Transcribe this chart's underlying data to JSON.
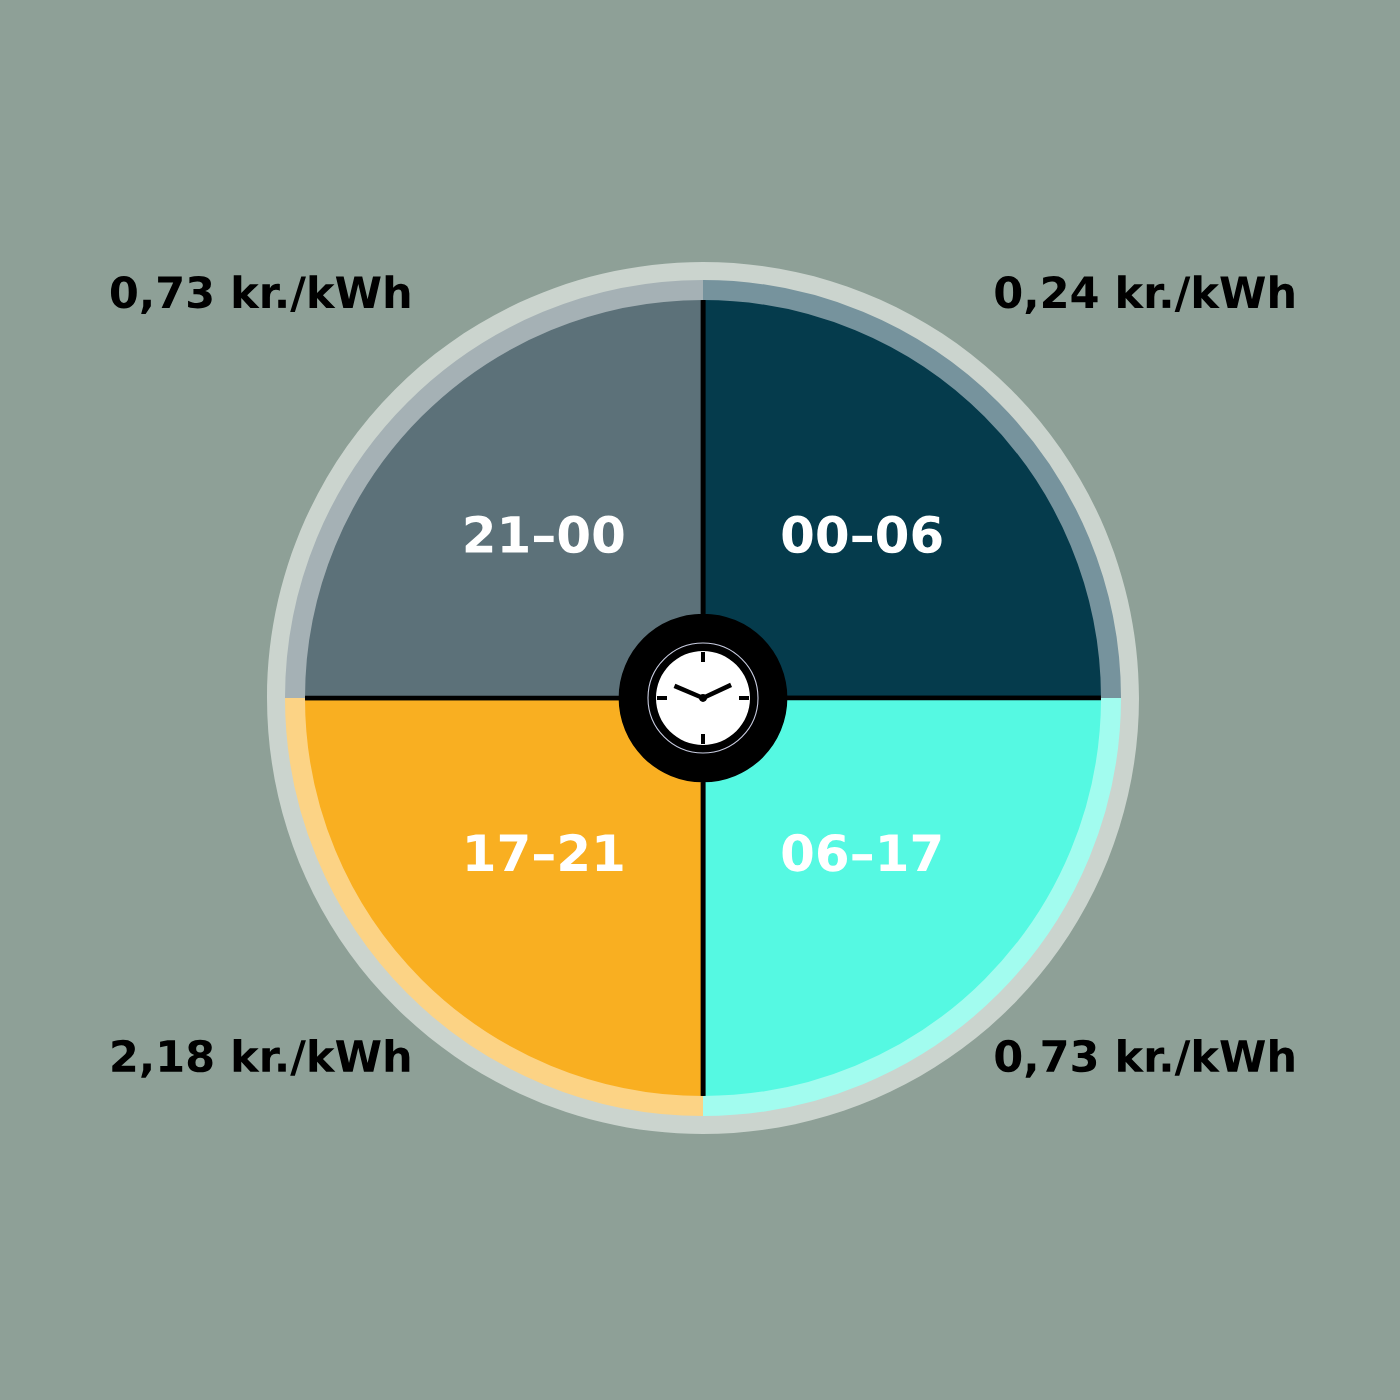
{
  "chart_data": {
    "type": "donut",
    "categories": [
      "00–06",
      "06–17",
      "17–21",
      "21–00"
    ],
    "values": [
      25,
      25,
      25,
      25
    ],
    "colors": [
      "#053b4c",
      "#55f9e2",
      "#f9af21",
      "#5c7179"
    ],
    "annotations": [
      "0,24 kr./kWh",
      "0,73 kr./kWh",
      "2,18 kr./kWh",
      "0,73 kr./kWh"
    ]
  }
}
